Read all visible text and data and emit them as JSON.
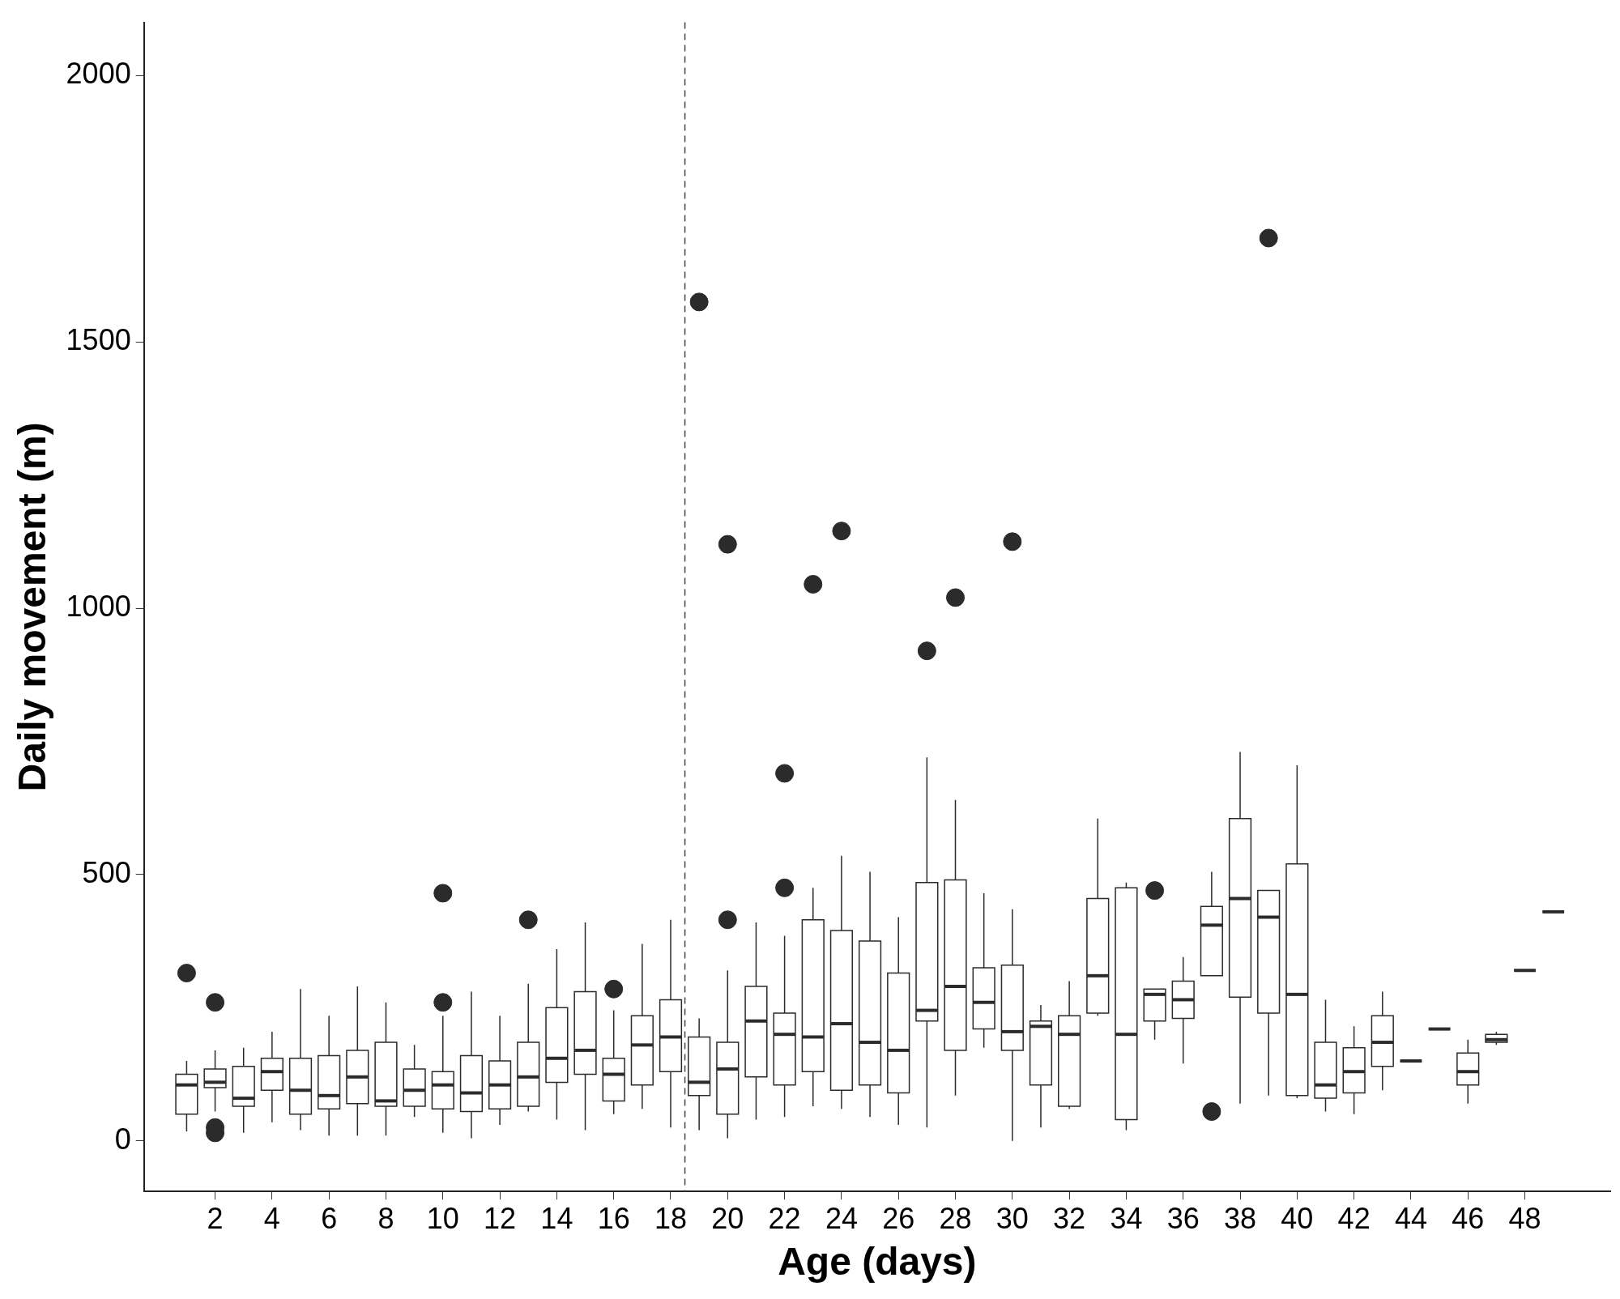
{
  "chart_data": {
    "type": "box",
    "xlabel": "Age (days)",
    "ylabel": "Daily movement (m)",
    "color": "#2b2b2b",
    "grid": false,
    "x": [
      1,
      2,
      3,
      4,
      5,
      6,
      7,
      8,
      9,
      10,
      11,
      12,
      13,
      14,
      15,
      16,
      17,
      18,
      19,
      20,
      21,
      22,
      23,
      24,
      25,
      26,
      27,
      28,
      29,
      30,
      31,
      32,
      33,
      34,
      35,
      36,
      37,
      38,
      39,
      40,
      41,
      42,
      43,
      44,
      45,
      46,
      47,
      48,
      49
    ],
    "xlim": [
      -0.5,
      51
    ],
    "xticks": [
      2,
      4,
      6,
      8,
      10,
      12,
      14,
      16,
      18,
      20,
      22,
      24,
      26,
      28,
      30,
      32,
      34,
      36,
      38,
      40,
      42,
      44,
      46,
      48
    ],
    "ylim": [
      -95,
      2100
    ],
    "yticks": [
      0,
      500,
      1000,
      1500,
      2000
    ],
    "ref_lines": [
      {
        "axis": "x",
        "value": 18.5,
        "line_style": "dashed"
      }
    ],
    "boxes": [
      {
        "low": 18,
        "q1": 50,
        "median": 105,
        "q3": 125,
        "high": 150,
        "outliers": [
          315
        ]
      },
      {
        "low": 55,
        "q1": 100,
        "median": 110,
        "q3": 135,
        "high": 170,
        "outliers": [
          260,
          25,
          15
        ]
      },
      {
        "low": 15,
        "q1": 65,
        "median": 80,
        "q3": 140,
        "high": 175
      },
      {
        "low": 35,
        "q1": 95,
        "median": 130,
        "q3": 155,
        "high": 205
      },
      {
        "low": 20,
        "q1": 50,
        "median": 95,
        "q3": 155,
        "high": 285
      },
      {
        "low": 10,
        "q1": 60,
        "median": 85,
        "q3": 160,
        "high": 235
      },
      {
        "low": 10,
        "q1": 70,
        "median": 120,
        "q3": 170,
        "high": 290
      },
      {
        "low": 10,
        "q1": 65,
        "median": 75,
        "q3": 185,
        "high": 260
      },
      {
        "low": 45,
        "q1": 65,
        "median": 95,
        "q3": 135,
        "high": 180
      },
      {
        "low": 15,
        "q1": 60,
        "median": 105,
        "q3": 130,
        "high": 235,
        "outliers": [
          465,
          260
        ]
      },
      {
        "low": 5,
        "q1": 55,
        "median": 90,
        "q3": 160,
        "high": 280
      },
      {
        "low": 30,
        "q1": 60,
        "median": 105,
        "q3": 150,
        "high": 235
      },
      {
        "low": 55,
        "q1": 65,
        "median": 120,
        "q3": 185,
        "high": 295,
        "outliers": [
          415
        ]
      },
      {
        "low": 40,
        "q1": 110,
        "median": 155,
        "q3": 250,
        "high": 360
      },
      {
        "low": 20,
        "q1": 125,
        "median": 170,
        "q3": 280,
        "high": 410
      },
      {
        "low": 50,
        "q1": 75,
        "median": 125,
        "q3": 155,
        "high": 245,
        "outliers": [
          285
        ]
      },
      {
        "low": 60,
        "q1": 105,
        "median": 180,
        "q3": 235,
        "high": 370
      },
      {
        "low": 25,
        "q1": 130,
        "median": 195,
        "q3": 265,
        "high": 415
      },
      {
        "low": 20,
        "q1": 85,
        "median": 110,
        "q3": 195,
        "high": 230,
        "outliers": [
          1575
        ]
      },
      {
        "low": 5,
        "q1": 50,
        "median": 135,
        "q3": 185,
        "high": 320,
        "outliers": [
          1120,
          415
        ]
      },
      {
        "low": 40,
        "q1": 120,
        "median": 225,
        "q3": 290,
        "high": 410
      },
      {
        "low": 45,
        "q1": 105,
        "median": 200,
        "q3": 240,
        "high": 385,
        "outliers": [
          690,
          475
        ]
      },
      {
        "low": 65,
        "q1": 130,
        "median": 195,
        "q3": 415,
        "high": 475,
        "outliers": [
          1045
        ]
      },
      {
        "low": 60,
        "q1": 95,
        "median": 220,
        "q3": 395,
        "high": 535,
        "outliers": [
          1145
        ]
      },
      {
        "low": 45,
        "q1": 105,
        "median": 185,
        "q3": 375,
        "high": 505
      },
      {
        "low": 30,
        "q1": 90,
        "median": 170,
        "q3": 315,
        "high": 420
      },
      {
        "low": 25,
        "q1": 225,
        "median": 245,
        "q3": 485,
        "high": 720,
        "outliers": [
          920
        ]
      },
      {
        "low": 85,
        "q1": 170,
        "median": 290,
        "q3": 490,
        "high": 640,
        "outliers": [
          1020
        ]
      },
      {
        "low": 175,
        "q1": 210,
        "median": 260,
        "q3": 325,
        "high": 465
      },
      {
        "low": 0,
        "q1": 170,
        "median": 205,
        "q3": 330,
        "high": 435,
        "outliers": [
          1125
        ]
      },
      {
        "low": 25,
        "q1": 105,
        "median": 215,
        "q3": 225,
        "high": 255
      },
      {
        "low": 60,
        "q1": 65,
        "median": 200,
        "q3": 235,
        "high": 300
      },
      {
        "low": 235,
        "q1": 240,
        "median": 310,
        "q3": 455,
        "high": 605
      },
      {
        "low": 20,
        "q1": 40,
        "median": 200,
        "q3": 475,
        "high": 485
      },
      {
        "low": 190,
        "q1": 225,
        "median": 275,
        "q3": 285,
        "high": 285,
        "outliers": [
          470
        ]
      },
      {
        "low": 145,
        "q1": 230,
        "median": 265,
        "q3": 300,
        "high": 345
      },
      {
        "low": 310,
        "q1": 310,
        "median": 405,
        "q3": 440,
        "high": 505,
        "outliers": [
          55
        ]
      },
      {
        "low": 70,
        "q1": 270,
        "median": 455,
        "q3": 605,
        "high": 730
      },
      {
        "low": 85,
        "q1": 240,
        "median": 420,
        "q3": 470,
        "high": 470,
        "outliers": [
          1695
        ]
      },
      {
        "low": 80,
        "q1": 85,
        "median": 275,
        "q3": 520,
        "high": 705
      },
      {
        "low": 55,
        "q1": 80,
        "median": 105,
        "q3": 185,
        "high": 265
      },
      {
        "low": 50,
        "q1": 90,
        "median": 130,
        "q3": 175,
        "high": 215
      },
      {
        "low": 95,
        "q1": 140,
        "median": 185,
        "q3": 235,
        "high": 280
      },
      {
        "low": 150,
        "q1": 150,
        "median": 150,
        "q3": 150,
        "high": 150
      },
      {
        "low": 210,
        "q1": 210,
        "median": 210,
        "q3": 210,
        "high": 210
      },
      {
        "low": 70,
        "q1": 105,
        "median": 130,
        "q3": 165,
        "high": 190
      },
      {
        "low": 180,
        "q1": 185,
        "median": 190,
        "q3": 200,
        "high": 205
      },
      {
        "low": 320,
        "q1": 320,
        "median": 320,
        "q3": 320,
        "high": 320
      },
      {
        "low": 430,
        "q1": 430,
        "median": 430,
        "q3": 430,
        "high": 430
      }
    ]
  }
}
